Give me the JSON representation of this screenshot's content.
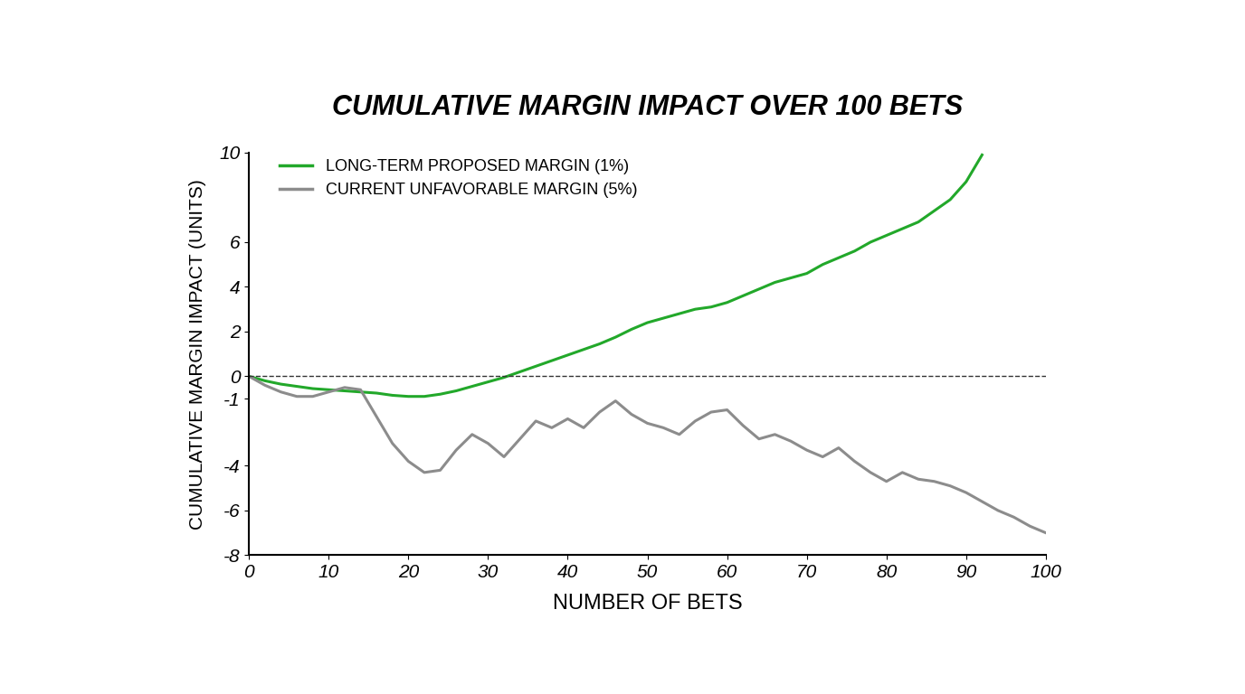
{
  "chart_data": {
    "type": "line",
    "title": "CUMULATIVE MARGIN IMPACT OVER 100 BETS",
    "x_label": "NUMBER OF BETS",
    "y_label": "CUMULATIVE MARGIN IMPACT (UNITS)",
    "x": [
      0,
      2,
      4,
      6,
      8,
      10,
      12,
      14,
      16,
      18,
      20,
      22,
      24,
      26,
      28,
      30,
      32,
      34,
      36,
      38,
      40,
      42,
      44,
      46,
      48,
      50,
      52,
      54,
      56,
      58,
      60,
      62,
      64,
      66,
      68,
      70,
      72,
      74,
      76,
      78,
      80,
      82,
      84,
      86,
      88,
      90,
      92,
      94,
      96,
      98,
      100
    ],
    "series": [
      {
        "name": "LONG-TERM PROPOSED MARGIN (1%)",
        "color": "#22a82a",
        "line_style": "solid",
        "values": [
          0,
          -0.2,
          -0.35,
          -0.45,
          -0.55,
          -0.6,
          -0.65,
          -0.7,
          -0.75,
          -0.85,
          -0.9,
          -0.9,
          -0.8,
          -0.65,
          -0.45,
          -0.25,
          -0.05,
          0.2,
          0.45,
          0.7,
          0.95,
          1.2,
          1.45,
          1.75,
          2.1,
          2.4,
          2.6,
          2.8,
          3.0,
          3.1,
          3.3,
          3.6,
          3.9,
          4.2,
          4.4,
          4.6,
          5.0,
          5.3,
          5.6,
          6.0,
          6.3,
          6.6,
          6.9,
          7.4,
          7.9,
          8.7,
          9.9,
          null,
          null,
          null,
          null
        ]
      },
      {
        "name": "CURRENT UNFAVORABLE MARGIN (5%)",
        "color": "#8c8c8c",
        "line_style": "solid",
        "values": [
          0,
          -0.4,
          -0.7,
          -0.9,
          -0.9,
          -0.7,
          -0.5,
          -0.6,
          -1.8,
          -3.0,
          -3.8,
          -4.3,
          -4.2,
          -3.3,
          -2.6,
          -3.0,
          -3.6,
          -2.8,
          -2.0,
          -2.3,
          -1.9,
          -2.3,
          -1.6,
          -1.1,
          -1.7,
          -2.1,
          -2.3,
          -2.6,
          -2.0,
          -1.6,
          -1.5,
          -2.2,
          -2.8,
          -2.6,
          -2.9,
          -3.3,
          -3.6,
          -3.2,
          -3.8,
          -4.3,
          -4.7,
          -4.3,
          -4.6,
          -4.7,
          -4.9,
          -5.2,
          -5.6,
          -6.0,
          -6.3,
          -6.7,
          -7.0
        ]
      }
    ],
    "reference_line": 0,
    "xlim": [
      0,
      100
    ],
    "xticks": [
      0,
      10,
      20,
      30,
      40,
      50,
      60,
      70,
      80,
      90,
      100
    ],
    "ylim": [
      -8,
      10
    ],
    "yticks": [
      -8,
      -6,
      -4,
      -1,
      0,
      2,
      4,
      6,
      10
    ],
    "grid": false,
    "legend": "upper left"
  }
}
